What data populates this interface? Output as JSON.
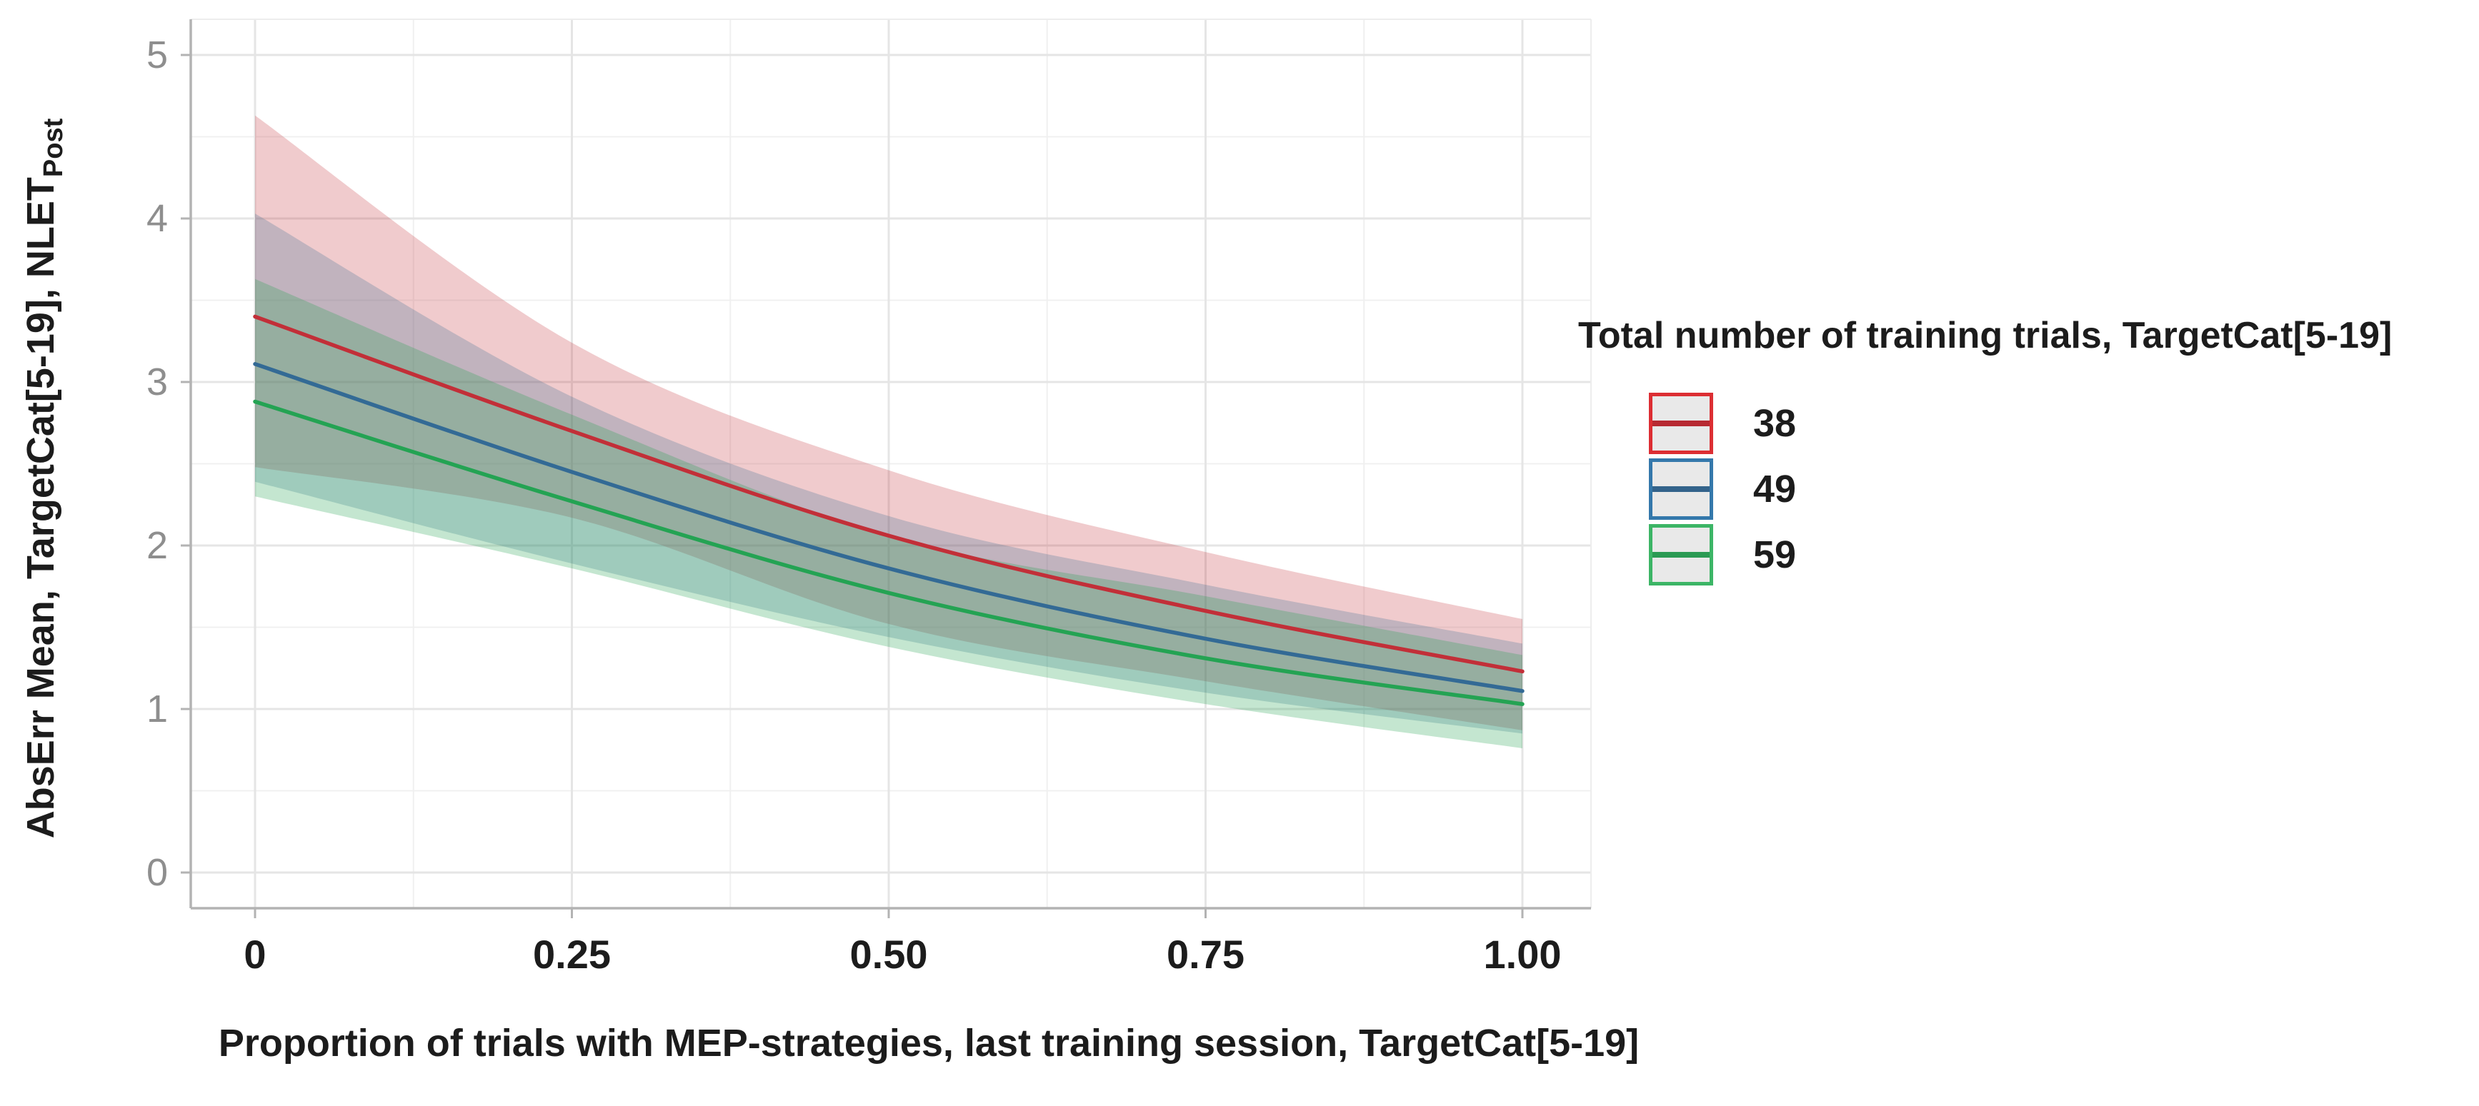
{
  "figure": {
    "background": "#ffffff"
  },
  "chart_data": {
    "type": "line",
    "title": "",
    "xlabel": "Proportion of trials with MEP-strategies, last training session, TargetCat[5-19]",
    "ylabel": "AbsErr Mean, TargetCat[5-19], NLET",
    "ylabel_subscript": "Post",
    "legend_title": "Total number of training trials, TargetCat[5-19]",
    "legend_position": "right",
    "grid": {
      "major_color": "#e5e5e5",
      "minor_color": "#f0f0f0",
      "background": "#ffffff"
    },
    "axis_color": "#b3b3b3",
    "panel_edge_color": "#ededed",
    "axes": {
      "x": {
        "range": [
          -0.051,
          1.054
        ],
        "ticks": [
          {
            "value": 0,
            "label": "0"
          },
          {
            "value": 0.25,
            "label": "0.25"
          },
          {
            "value": 0.5,
            "label": "0.50"
          },
          {
            "value": 0.75,
            "label": "0.75"
          },
          {
            "value": 1.0,
            "label": "1.00"
          }
        ],
        "minor": [
          0.125,
          0.375,
          0.625,
          0.875
        ]
      },
      "y": {
        "range": [
          -0.22,
          5.22
        ],
        "ticks": [
          {
            "value": 0,
            "label": "0"
          },
          {
            "value": 1,
            "label": "1"
          },
          {
            "value": 2,
            "label": "2"
          },
          {
            "value": 3,
            "label": "3"
          },
          {
            "value": 4,
            "label": "4"
          },
          {
            "value": 5,
            "label": "5"
          }
        ],
        "minor": [
          0.5,
          1.5,
          2.5,
          3.5,
          4.5
        ]
      }
    },
    "x": [
      0,
      0.25,
      0.5,
      0.75,
      1.0
    ],
    "series": [
      {
        "name": "38",
        "color": "#c22f38",
        "key_border": "#dc2e33",
        "key_line": "#b72a32",
        "ribbon_opacity": 0.25,
        "y": [
          3.4,
          2.7,
          2.06,
          1.6,
          1.23
        ],
        "upper": [
          4.63,
          3.24,
          2.46,
          1.96,
          1.55
        ],
        "lower": [
          2.48,
          2.17,
          1.52,
          1.17,
          0.87
        ]
      },
      {
        "name": "49",
        "color": "#336a95",
        "key_border": "#3478ab",
        "key_line": "#33638b",
        "ribbon_opacity": 0.25,
        "y": [
          3.11,
          2.45,
          1.86,
          1.43,
          1.11
        ],
        "upper": [
          4.03,
          2.91,
          2.18,
          1.76,
          1.4
        ],
        "lower": [
          2.39,
          1.89,
          1.44,
          1.1,
          0.85
        ]
      },
      {
        "name": "59",
        "color": "#24a353",
        "key_border": "#3cb566",
        "key_line": "#2b9a53",
        "ribbon_opacity": 0.27,
        "y": [
          2.88,
          2.27,
          1.71,
          1.31,
          1.03
        ],
        "upper": [
          3.63,
          2.8,
          2.06,
          1.69,
          1.33
        ],
        "lower": [
          2.3,
          1.86,
          1.38,
          1.03,
          0.76
        ]
      }
    ]
  },
  "legend": {
    "title": "Total number of training trials, TargetCat[5-19]",
    "items": [
      {
        "label": "38"
      },
      {
        "label": "49"
      },
      {
        "label": "59"
      }
    ]
  }
}
